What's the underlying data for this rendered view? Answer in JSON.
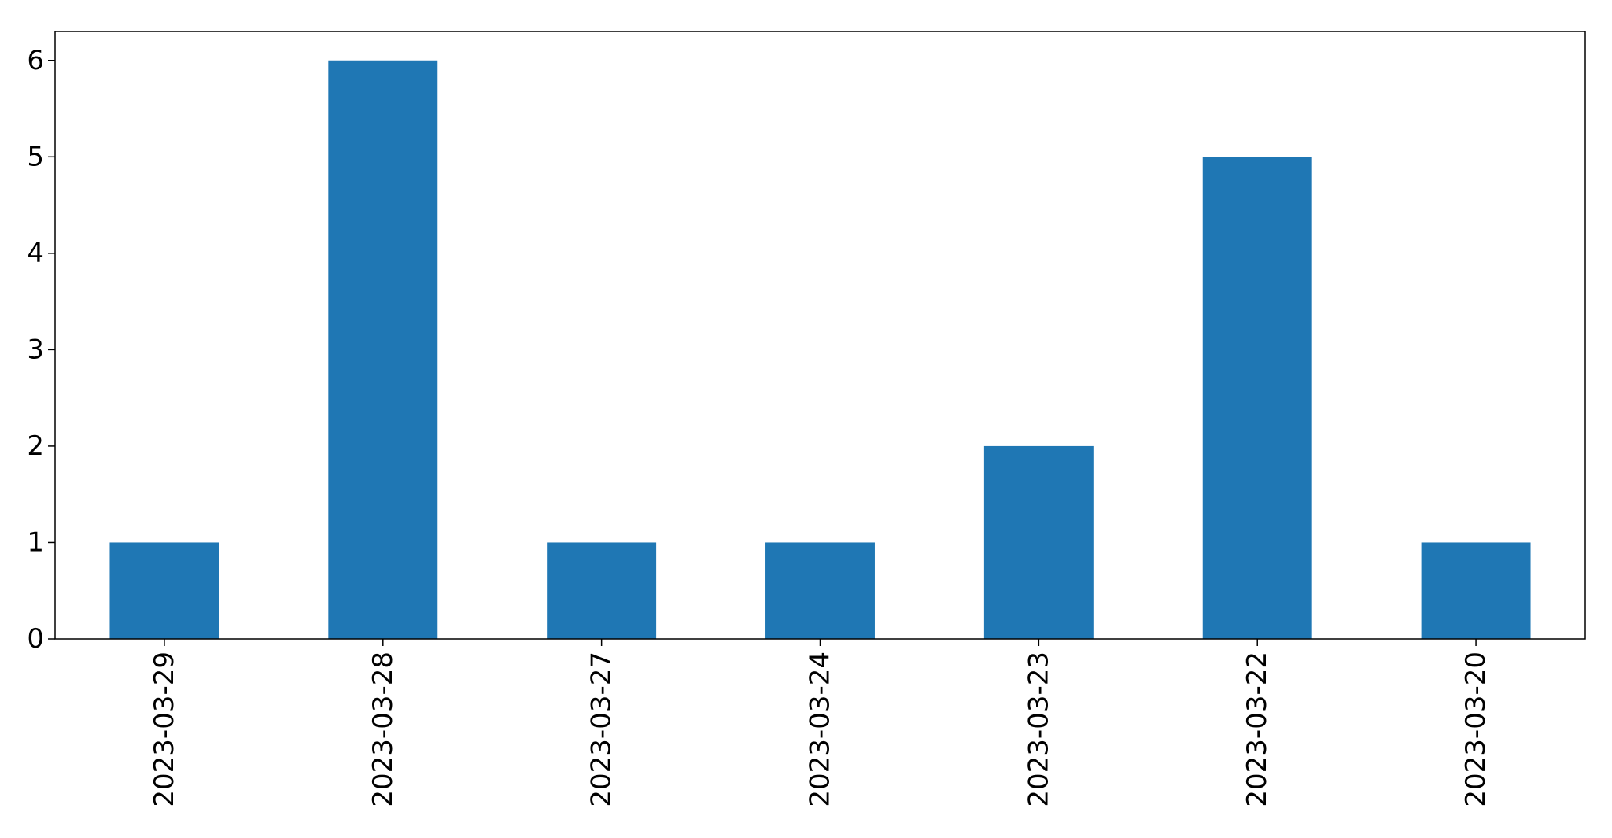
{
  "chart_data": {
    "type": "bar",
    "categories": [
      "2023-03-29",
      "2023-03-28",
      "2023-03-27",
      "2023-03-24",
      "2023-03-23",
      "2023-03-22",
      "2023-03-20"
    ],
    "values": [
      1,
      6,
      1,
      1,
      2,
      5,
      1
    ],
    "yticks": [
      "0",
      "1",
      "2",
      "3",
      "4",
      "5",
      "6"
    ],
    "title": "",
    "xlabel": "",
    "ylabel": "",
    "ylim": [
      0,
      6.3
    ],
    "grid": false,
    "legend": "none",
    "bar_color": "#1f77b4"
  }
}
